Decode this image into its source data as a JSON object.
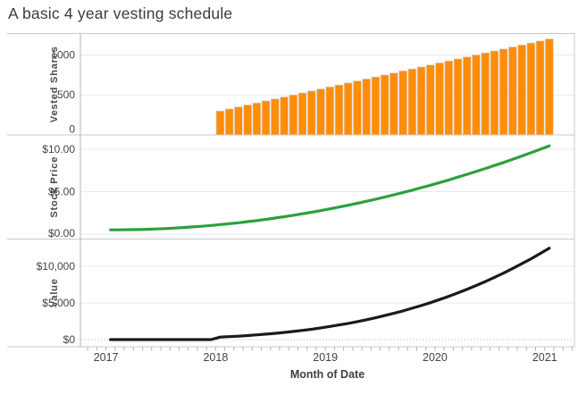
{
  "title": "A basic 4 year vesting schedule",
  "x_axis": {
    "title": "Month of Date",
    "years": [
      "2017",
      "2018",
      "2019",
      "2020",
      "2021"
    ]
  },
  "colors": {
    "bars": "#ff8d0a",
    "stock_price_line": "#2ba13d",
    "value_line": "#1a1a1a"
  },
  "chart_data": [
    {
      "type": "bar",
      "panel": "Vested Shares",
      "ylabel": "Vested Shares",
      "ytick_labels": [
        "1000",
        "500",
        "0"
      ],
      "yticks": [
        1000,
        500,
        0
      ],
      "ylim": [
        0,
        1268
      ],
      "color": "#ff8d0a",
      "x_unit": "months since Jan 2017 (Jan 2018 cliff of 300 shares, +25/month to 1200 at Jan 2021)",
      "x": [
        12,
        13,
        14,
        15,
        16,
        17,
        18,
        19,
        20,
        21,
        22,
        23,
        24,
        25,
        26,
        27,
        28,
        29,
        30,
        31,
        32,
        33,
        34,
        35,
        36,
        37,
        38,
        39,
        40,
        41,
        42,
        43,
        44,
        45,
        46,
        47,
        48
      ],
      "values": [
        300,
        325,
        350,
        375,
        400,
        425,
        450,
        475,
        500,
        525,
        550,
        575,
        600,
        625,
        650,
        675,
        700,
        725,
        750,
        775,
        800,
        825,
        850,
        875,
        900,
        925,
        950,
        975,
        1000,
        1025,
        1050,
        1075,
        1100,
        1125,
        1150,
        1175,
        1200
      ]
    },
    {
      "type": "line",
      "panel": "Stock Price",
      "ylabel": "Stock Price",
      "ytick_labels": [
        "$10.00",
        "$5.00",
        "$0.00"
      ],
      "yticks": [
        10,
        5,
        0
      ],
      "ylim": [
        -0.58,
        11.68
      ],
      "color": "#2ba13d",
      "x_unit": "months since Jan 2017",
      "x": [
        0,
        1,
        2,
        3,
        4,
        5,
        6,
        7,
        8,
        9,
        10,
        11,
        12,
        13,
        14,
        15,
        16,
        17,
        18,
        19,
        20,
        21,
        22,
        23,
        24,
        25,
        26,
        27,
        28,
        29,
        30,
        31,
        32,
        33,
        34,
        35,
        36,
        37,
        38,
        39,
        40,
        41,
        42,
        43,
        44,
        45,
        46,
        47,
        48
      ],
      "values": [
        0.5,
        0.5,
        0.52,
        0.54,
        0.57,
        0.61,
        0.65,
        0.71,
        0.78,
        0.85,
        0.93,
        1.02,
        1.12,
        1.23,
        1.34,
        1.47,
        1.6,
        1.74,
        1.89,
        2.05,
        2.22,
        2.4,
        2.58,
        2.77,
        2.98,
        3.19,
        3.4,
        3.63,
        3.87,
        4.11,
        4.37,
        4.63,
        4.9,
        5.18,
        5.47,
        5.76,
        6.07,
        6.38,
        6.71,
        7.04,
        7.38,
        7.72,
        8.08,
        8.44,
        8.82,
        9.2,
        9.59,
        9.99,
        10.4
      ]
    },
    {
      "type": "line",
      "panel": "Value",
      "ylabel": "Value",
      "ytick_labels": [
        "$10,000",
        "$5,000",
        "$0"
      ],
      "yticks": [
        10000,
        5000,
        0
      ],
      "ylim": [
        -976,
        13719
      ],
      "color": "#1a1a1a",
      "zero_line": "dotted",
      "x_unit": "months since Jan 2017 (value = vested shares × stock price)",
      "x": [
        0,
        1,
        2,
        3,
        4,
        5,
        6,
        7,
        8,
        9,
        10,
        11,
        12,
        13,
        14,
        15,
        16,
        17,
        18,
        19,
        20,
        21,
        22,
        23,
        24,
        25,
        26,
        27,
        28,
        29,
        30,
        31,
        32,
        33,
        34,
        35,
        36,
        37,
        38,
        39,
        40,
        41,
        42,
        43,
        44,
        45,
        46,
        47,
        48
      ],
      "values": [
        0,
        0,
        0,
        0,
        0,
        0,
        0,
        0,
        0,
        0,
        0,
        0,
        336,
        400,
        469,
        551,
        640,
        740,
        851,
        974,
        1110,
        1260,
        1419,
        1593,
        1788,
        1994,
        2210,
        2450,
        2709,
        2980,
        3278,
        3588,
        3920,
        4274,
        4650,
        5040,
        5463,
        5902,
        6375,
        6864,
        7380,
        7913,
        8484,
        9073,
        9702,
        10350,
        11029,
        11738,
        12480
      ]
    }
  ]
}
